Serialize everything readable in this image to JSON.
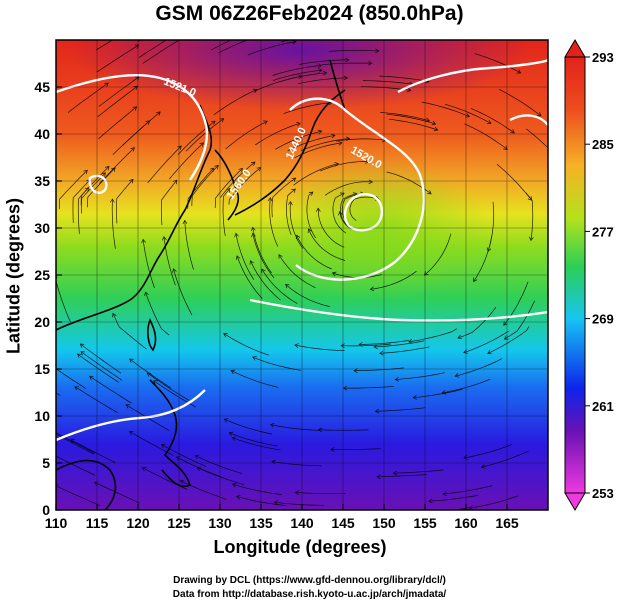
{
  "header": {
    "title": "GSM 06Z26Feb2024 (850.0hPa)"
  },
  "axes": {
    "xlabel": "Longitude (degrees)",
    "ylabel": "Latitude  (degrees)",
    "xticks": [
      "110",
      "115",
      "120",
      "125",
      "130",
      "135",
      "140",
      "145",
      "150",
      "155",
      "160",
      "165"
    ],
    "yticks": [
      "0",
      "5",
      "10",
      "15",
      "20",
      "25",
      "30",
      "35",
      "40",
      "45"
    ],
    "xrange": [
      110,
      170
    ],
    "yrange": [
      0,
      50
    ]
  },
  "colorbar": {
    "ticks": [
      "293",
      "285",
      "277",
      "269",
      "261",
      "253"
    ],
    "range": [
      253,
      293
    ],
    "colors": [
      "#ef3ae0",
      "#6a11b4",
      "#0e24ea",
      "#17c5f2",
      "#2ccf55",
      "#b4e21c",
      "#f6b226",
      "#ee4d1f",
      "#e1231b"
    ]
  },
  "contours": {
    "labels": [
      "1521.0",
      "1440.0",
      "1560.0",
      "1520.0"
    ]
  },
  "credits": {
    "line1": "Drawing by DCL (https://www.gfd-dennou.org/library/dcl/)",
    "line2": "Data from http://database.rish.kyoto-u.ac.jp/arch/jmadata/"
  }
}
